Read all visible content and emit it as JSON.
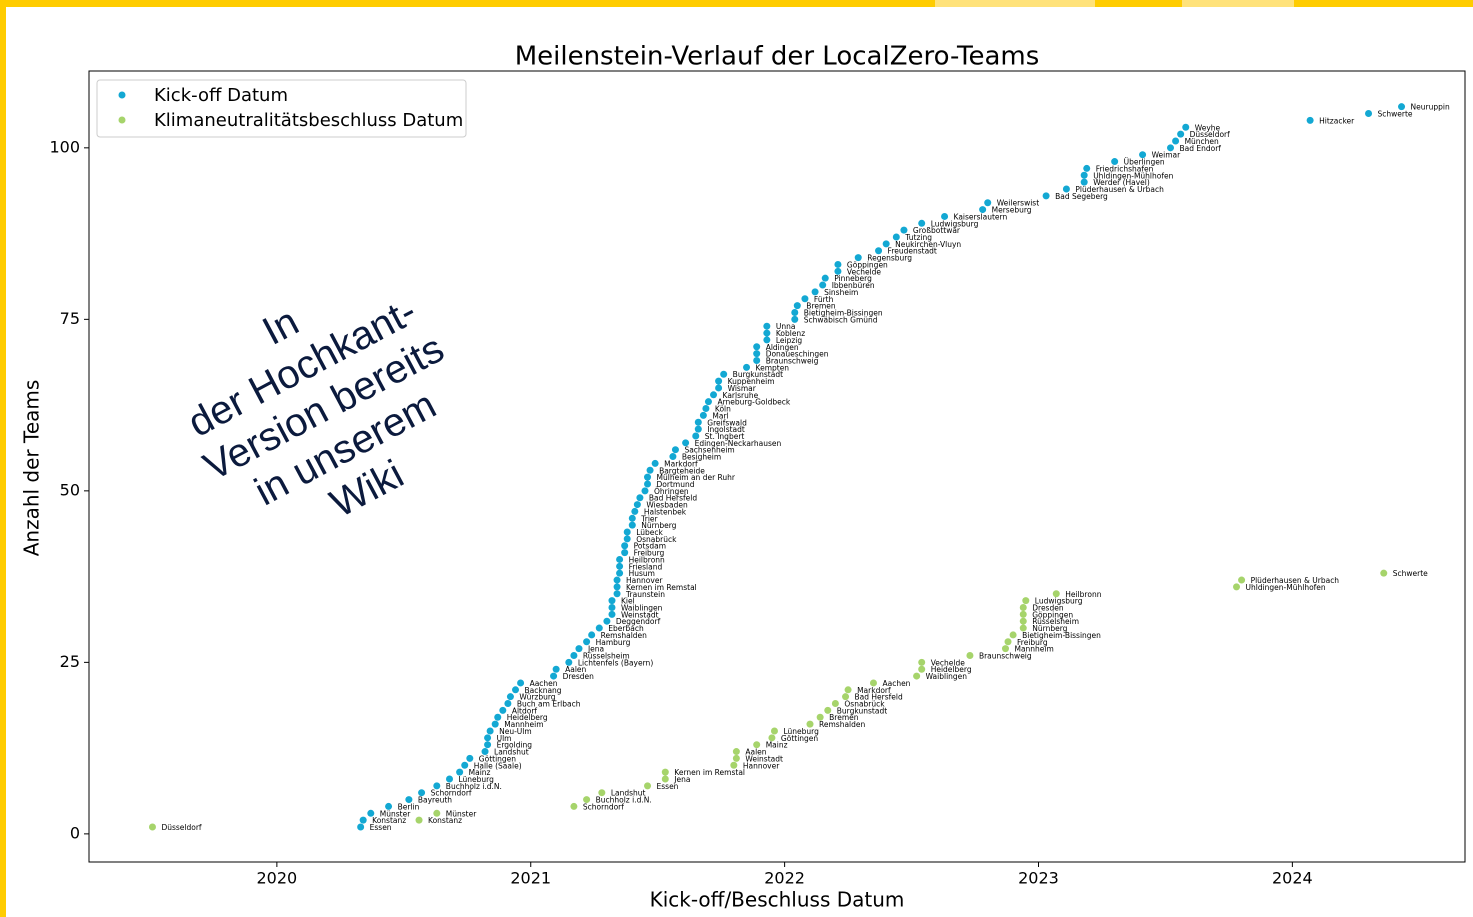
{
  "chart_data": {
    "type": "scatter",
    "title": "Meilenstein-Verlauf der LocalZero-Teams",
    "xlabel": "Kick-off/Beschluss Datum",
    "ylabel": "Anzahl der Teams",
    "xlim": [
      2019.26,
      2024.68
    ],
    "ylim": [
      -4.1,
      111.2
    ],
    "xticks": [
      2020,
      2021,
      2022,
      2023,
      2024
    ],
    "yticks": [
      0,
      25,
      50,
      75,
      100
    ],
    "legend": "upper left",
    "overlay_text": [
      "In",
      "der Hochkant-",
      "Version bereits",
      "in unserem",
      "Wiki"
    ],
    "series": [
      {
        "name": "Kick-off Datum",
        "color": "#13a8d3",
        "x": [
          2020.33,
          2020.34,
          2020.37,
          2020.44,
          2020.52,
          2020.57,
          2020.63,
          2020.68,
          2020.72,
          2020.74,
          2020.76,
          2020.82,
          2020.83,
          2020.83,
          2020.84,
          2020.86,
          2020.87,
          2020.89,
          2020.91,
          2020.92,
          2020.94,
          2020.96,
          2021.09,
          2021.1,
          2021.15,
          2021.17,
          2021.19,
          2021.22,
          2021.24,
          2021.27,
          2021.3,
          2021.32,
          2021.32,
          2021.32,
          2021.34,
          2021.34,
          2021.34,
          2021.35,
          2021.35,
          2021.35,
          2021.37,
          2021.37,
          2021.38,
          2021.38,
          2021.4,
          2021.4,
          2021.41,
          2021.42,
          2021.43,
          2021.45,
          2021.46,
          2021.46,
          2021.47,
          2021.49,
          2021.56,
          2021.57,
          2021.61,
          2021.65,
          2021.66,
          2021.66,
          2021.68,
          2021.69,
          2021.7,
          2021.72,
          2021.74,
          2021.74,
          2021.76,
          2021.85,
          2021.89,
          2021.89,
          2021.89,
          2021.93,
          2021.93,
          2021.93,
          2022.04,
          2022.04,
          2022.05,
          2022.08,
          2022.12,
          2022.15,
          2022.16,
          2022.21,
          2022.21,
          2022.29,
          2022.37,
          2022.4,
          2022.44,
          2022.47,
          2022.54,
          2022.63,
          2022.78,
          2022.8,
          2023.03,
          2023.11,
          2023.18,
          2023.18,
          2023.19,
          2023.3,
          2023.41,
          2023.52,
          2023.54,
          2023.56,
          2023.58,
          2024.07,
          2024.3,
          2024.43
        ],
        "values": [
          1,
          2,
          3,
          4,
          5,
          6,
          7,
          8,
          9,
          10,
          11,
          12,
          13,
          14,
          15,
          16,
          17,
          18,
          19,
          20,
          21,
          22,
          23,
          24,
          25,
          26,
          27,
          28,
          29,
          30,
          31,
          32,
          33,
          34,
          35,
          36,
          37,
          38,
          39,
          40,
          41,
          42,
          43,
          44,
          45,
          46,
          47,
          48,
          49,
          50,
          51,
          52,
          53,
          54,
          55,
          56,
          57,
          58,
          59,
          60,
          61,
          62,
          63,
          64,
          65,
          66,
          67,
          68,
          69,
          70,
          71,
          72,
          73,
          74,
          75,
          76,
          77,
          78,
          79,
          80,
          81,
          82,
          83,
          84,
          85,
          86,
          87,
          88,
          89,
          90,
          91,
          92,
          93,
          94,
          95,
          96,
          97,
          98,
          99,
          100,
          101,
          102,
          103,
          104,
          105,
          106
        ],
        "labels": [
          "Essen",
          "Konstanz",
          "Münster",
          "Berlin",
          "Bayreuth",
          "Schorndorf",
          "Buchholz i.d.N.",
          "Lüneburg",
          "Mainz",
          "Halle (Saale)",
          "Göttingen",
          "Landshut",
          "Ergolding",
          "Ulm",
          "Neu-Ulm",
          "Mannheim",
          "Heidelberg",
          "Altdorf",
          "Buch am Erlbach",
          "Würzburg",
          "Backnang",
          "Aachen",
          "Dresden",
          "Aalen",
          "Lichtenfels (Bayern)",
          "Rüsselsheim",
          "Jena",
          "Hamburg",
          "Remshalden",
          "Eberbach",
          "Deggendorf",
          "Weinstadt",
          "Waiblingen",
          "Kiel",
          "Traunstein",
          "Kernen im Remstal",
          "Hannover",
          "Husum",
          "Friesland",
          "Heilbronn",
          "Freiburg",
          "Potsdam",
          "Osnabrück",
          "Lübeck",
          "Nürnberg",
          "Trier",
          "Halstenbek",
          "Wiesbaden",
          "Bad Hersfeld",
          "Öhringen",
          "Dortmund",
          "Mülheim an der Ruhr",
          "Bargteheide",
          "Markdorf",
          "Besigheim",
          "Sachsenheim",
          "Edingen-Neckarhausen",
          "St. Ingbert",
          "Ingolstadt",
          "Greifswald",
          "Marl",
          "Köln",
          "Arneburg-Goldbeck",
          "Karlsruhe",
          "Wismar",
          "Kuppenheim",
          "Burgkunstadt",
          "Kempten",
          "Braunschweig",
          "Donaueschingen",
          "Aldingen",
          "Leipzig",
          "Koblenz",
          "Unna",
          "Schwäbisch Gmünd",
          "Bietigheim-Bissingen",
          "Bremen",
          "Fürth",
          "Sinsheim",
          "Ibbenbüren",
          "Pinneberg",
          "Vechelde",
          "Göppingen",
          "Regensburg",
          "Freudenstadt",
          "Neukirchen-Vluyn",
          "Tutzing",
          "Großbottwar",
          "Ludwigsburg",
          "Kaiserslautern",
          "Merseburg",
          "Weilerswist",
          "Bad Segeberg",
          "Plüderhausen & Urbach",
          "Werder (Havel)",
          "Uhldingen-Mühlhofen",
          "Friedrichshafen",
          "Überlingen",
          "Weimar",
          "Bad Endorf",
          "München",
          "Düsseldorf",
          "Weyhe",
          "Hitzacker",
          "Schwerte",
          "Neuruppin"
        ]
      },
      {
        "name": "Klimaneutralitätsbeschluss Datum",
        "color": "#a6d46b",
        "x": [
          2019.51,
          2020.56,
          2020.63,
          2021.17,
          2021.22,
          2021.28,
          2021.46,
          2021.53,
          2021.53,
          2021.8,
          2021.81,
          2021.81,
          2021.89,
          2021.95,
          2021.96,
          2022.1,
          2022.14,
          2022.17,
          2022.2,
          2022.24,
          2022.25,
          2022.35,
          2022.52,
          2022.54,
          2022.54,
          2022.73,
          2022.87,
          2022.88,
          2022.9,
          2022.94,
          2022.94,
          2022.94,
          2022.94,
          2022.95,
          2023.07,
          2023.78,
          2023.8,
          2024.36
        ],
        "values": [
          1,
          2,
          3,
          4,
          5,
          6,
          7,
          8,
          9,
          10,
          11,
          12,
          13,
          14,
          15,
          16,
          17,
          18,
          19,
          20,
          21,
          22,
          23,
          24,
          25,
          26,
          27,
          28,
          29,
          30,
          31,
          32,
          33,
          34,
          35,
          36,
          37,
          38
        ],
        "labels": [
          "Düsseldorf",
          "Konstanz",
          "Münster",
          "Schorndorf",
          "Buchholz i.d.N.",
          "Landshut",
          "Essen",
          "Jena",
          "Kernen im Remstal",
          "Hannover",
          "Weinstadt",
          "Aalen",
          "Mainz",
          "Göttingen",
          "Lüneburg",
          "Remshalden",
          "Bremen",
          "Burgkunstadt",
          "Osnabrück",
          "Bad Hersfeld",
          "Markdorf",
          "Aachen",
          "Waiblingen",
          "Heidelberg",
          "Vechelde",
          "Braunschweig",
          "Mannheim",
          "Freiburg",
          "Bietigheim-Bissingen",
          "Nürnberg",
          "Rüsselsheim",
          "Göppingen",
          "Dresden",
          "Ludwigsburg",
          "Heilbronn",
          "Uhldingen-Mühlhofen",
          "Plüderhausen & Urbach",
          "Schwerte"
        ]
      }
    ]
  }
}
